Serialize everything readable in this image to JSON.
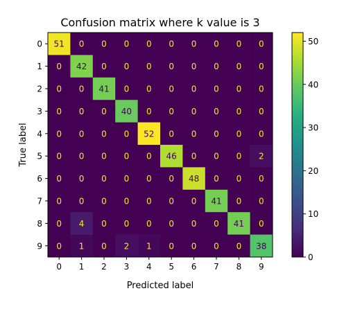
{
  "chart_data": {
    "type": "heatmap",
    "title": "Confusion matrix where k value is 3",
    "xlabel": "Predicted label",
    "ylabel": "True label",
    "x_ticks": [
      "0",
      "1",
      "2",
      "3",
      "4",
      "5",
      "6",
      "7",
      "8",
      "9"
    ],
    "y_ticks": [
      "0",
      "1",
      "2",
      "3",
      "4",
      "5",
      "6",
      "7",
      "8",
      "9"
    ],
    "matrix": [
      [
        51,
        0,
        0,
        0,
        0,
        0,
        0,
        0,
        0,
        0
      ],
      [
        0,
        42,
        0,
        0,
        0,
        0,
        0,
        0,
        0,
        0
      ],
      [
        0,
        0,
        41,
        0,
        0,
        0,
        0,
        0,
        0,
        0
      ],
      [
        0,
        0,
        0,
        40,
        0,
        0,
        0,
        0,
        0,
        0
      ],
      [
        0,
        0,
        0,
        0,
        52,
        0,
        0,
        0,
        0,
        0
      ],
      [
        0,
        0,
        0,
        0,
        0,
        46,
        0,
        0,
        0,
        2
      ],
      [
        0,
        0,
        0,
        0,
        0,
        0,
        48,
        0,
        0,
        0
      ],
      [
        0,
        0,
        0,
        0,
        0,
        0,
        0,
        41,
        0,
        0
      ],
      [
        0,
        4,
        0,
        0,
        0,
        0,
        0,
        0,
        41,
        0
      ],
      [
        0,
        1,
        0,
        2,
        1,
        0,
        0,
        0,
        0,
        38
      ]
    ],
    "colormap": "viridis",
    "value_range": [
      0,
      52
    ],
    "colorbar_ticks": [
      0,
      10,
      20,
      30,
      40,
      50
    ],
    "grid": false
  }
}
